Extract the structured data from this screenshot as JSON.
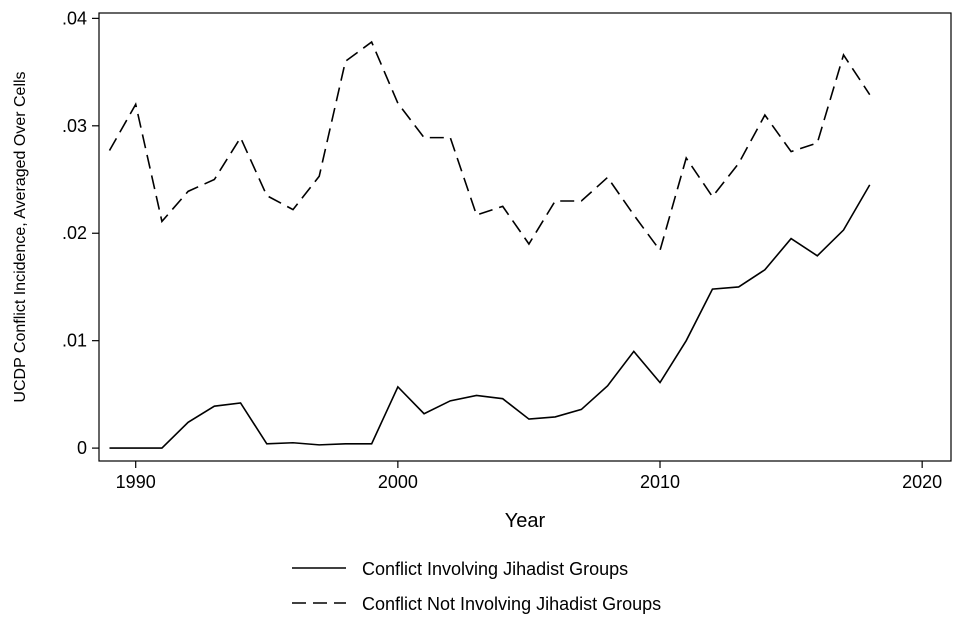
{
  "chart_data": {
    "type": "line",
    "title": "",
    "xlabel": "Year",
    "ylabel": "UCDP Conflict Incidence, Averaged Over Cells",
    "xlim": [
      1988.6,
      2021.1
    ],
    "ylim": [
      -0.0012,
      0.0405
    ],
    "xticks": [
      1990,
      2000,
      2010,
      2020
    ],
    "xtick_labels": [
      "1990",
      "2000",
      "2010",
      "2020"
    ],
    "yticks": [
      0,
      0.01,
      0.02,
      0.03,
      0.04
    ],
    "ytick_labels": [
      "0",
      ".01",
      ".02",
      ".03",
      ".04"
    ],
    "grid": false,
    "legend_position": "bottom",
    "x": [
      1989,
      1990,
      1991,
      1992,
      1993,
      1994,
      1995,
      1996,
      1997,
      1998,
      1999,
      2000,
      2001,
      2002,
      2003,
      2004,
      2005,
      2006,
      2007,
      2008,
      2009,
      2010,
      2011,
      2012,
      2013,
      2014,
      2015,
      2016,
      2017,
      2018
    ],
    "series": [
      {
        "name": "Conflict Involving Jihadist Groups",
        "line_style": "solid",
        "color": "#000000",
        "values": [
          0.0,
          0.0,
          0.0,
          0.0024,
          0.0039,
          0.0042,
          0.0004,
          0.0005,
          0.0003,
          0.0004,
          0.0004,
          0.0057,
          0.0032,
          0.0044,
          0.0049,
          0.0046,
          0.0027,
          0.0029,
          0.0036,
          0.0058,
          0.009,
          0.0061,
          0.01,
          0.0148,
          0.015,
          0.0166,
          0.0195,
          0.0179,
          0.0203,
          0.0245
        ]
      },
      {
        "name": "Conflict Not Involving Jihadist Groups",
        "line_style": "dashed",
        "color": "#000000",
        "values": [
          0.0277,
          0.032,
          0.0211,
          0.0239,
          0.025,
          0.0289,
          0.0235,
          0.0222,
          0.0253,
          0.036,
          0.0378,
          0.0321,
          0.0289,
          0.0289,
          0.0217,
          0.0225,
          0.019,
          0.023,
          0.023,
          0.0252,
          0.0217,
          0.0184,
          0.027,
          0.0234,
          0.0265,
          0.031,
          0.0276,
          0.0284,
          0.0366,
          0.0329
        ]
      }
    ]
  }
}
